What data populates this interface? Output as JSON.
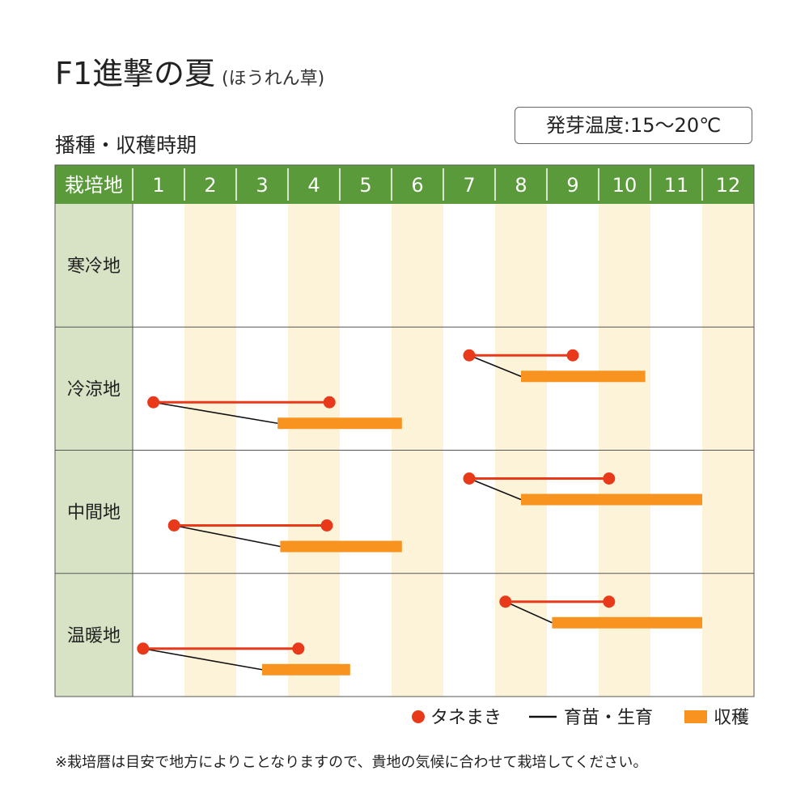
{
  "title": "F1進撃の夏",
  "subtitle": "(ほうれん草)",
  "section_title": "播種・収穫時期",
  "germination_badge": "発芽温度:15〜20℃",
  "footnote": "※栽培暦は目安で地方によりことなりますので、貴地の気候に合わせて栽培してください。",
  "colors": {
    "header_bg": "#5a9a3a",
    "region_bg": "#d8e3c6",
    "band_alt": "#fdf3d8",
    "sowing": "#e8391b",
    "harvest": "#f7931e",
    "growing": "#111111"
  },
  "chart_data": {
    "type": "gantt",
    "corner_label": "栽培地",
    "months": [
      "1",
      "2",
      "3",
      "4",
      "5",
      "6",
      "7",
      "8",
      "9",
      "10",
      "11",
      "12"
    ],
    "x_unit": "month",
    "xlim": [
      1,
      13
    ],
    "regions": [
      {
        "name": "寒冷地",
        "cycles": []
      },
      {
        "name": "冷涼地",
        "cycles": [
          {
            "sowing": [
              1.4,
              4.8
            ],
            "harvest": [
              3.8,
              6.2
            ]
          },
          {
            "sowing": [
              7.5,
              9.5
            ],
            "harvest": [
              8.5,
              10.9
            ]
          }
        ]
      },
      {
        "name": "中間地",
        "cycles": [
          {
            "sowing": [
              1.8,
              4.75
            ],
            "harvest": [
              3.85,
              6.2
            ]
          },
          {
            "sowing": [
              7.5,
              10.2
            ],
            "harvest": [
              8.5,
              12.0
            ]
          }
        ]
      },
      {
        "name": "温暖地",
        "cycles": [
          {
            "sowing": [
              1.2,
              4.2
            ],
            "harvest": [
              3.5,
              5.2
            ]
          },
          {
            "sowing": [
              8.2,
              10.2
            ],
            "harvest": [
              9.1,
              12.0
            ]
          }
        ]
      }
    ],
    "legend": [
      {
        "key": "sowing",
        "label": "タネまき"
      },
      {
        "key": "growing",
        "label": "育苗・生育"
      },
      {
        "key": "harvest",
        "label": "収穫"
      }
    ]
  }
}
